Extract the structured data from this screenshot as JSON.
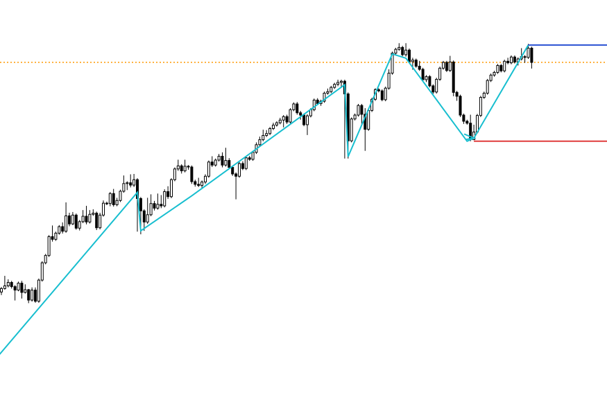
{
  "chart_data": {
    "type": "candlestick",
    "title": "",
    "xlabel": "",
    "ylabel": "",
    "xlim": [
      0,
      156
    ],
    "ylim": [
      0,
      100
    ],
    "grid": false,
    "legend": "none",
    "colors": {
      "background": "#ffffff",
      "candle": "#000000",
      "zigzag": "#17becf",
      "resistance_line": "#2f55d4",
      "support_line": "#e03c3c",
      "reference_line": "#ff9900"
    },
    "candles": [
      [
        0,
        26.6,
        27.5,
        27.9,
        25.8
      ],
      [
        1,
        27.5,
        28.2,
        30.8,
        27.2
      ],
      [
        2,
        28.2,
        29.1,
        29.9,
        27.8
      ],
      [
        3,
        29.1,
        28.0,
        29.5,
        27.5
      ],
      [
        4,
        28.0,
        27.1,
        28.4,
        24.4
      ],
      [
        5,
        27.1,
        28.9,
        29.3,
        26.8
      ],
      [
        6,
        28.9,
        26.5,
        29.5,
        24.9
      ],
      [
        7,
        26.5,
        27.2,
        28.6,
        26.2
      ],
      [
        8,
        27.2,
        24.5,
        27.4,
        23.7
      ],
      [
        9,
        24.5,
        27.1,
        27.8,
        24.1
      ],
      [
        10,
        27.1,
        24.2,
        27.8,
        23.8
      ],
      [
        11,
        24.2,
        29.7,
        30.1,
        23.8
      ],
      [
        12,
        29.7,
        34.2,
        34.6,
        29.3
      ],
      [
        13,
        34.2,
        36.1,
        36.5,
        33.8
      ],
      [
        14,
        36.1,
        41.0,
        41.4,
        35.7
      ],
      [
        15,
        41.0,
        40.3,
        43.9,
        39.7
      ],
      [
        16,
        40.3,
        41.9,
        42.3,
        39.9
      ],
      [
        17,
        41.9,
        43.6,
        44.0,
        41.5
      ],
      [
        18,
        43.6,
        42.4,
        44.7,
        41.8
      ],
      [
        19,
        42.4,
        46.4,
        49.9,
        42.0
      ],
      [
        20,
        46.4,
        44.3,
        47.2,
        43.7
      ],
      [
        21,
        44.3,
        46.6,
        47.4,
        44.0
      ],
      [
        22,
        46.6,
        43.2,
        47.0,
        42.8
      ],
      [
        23,
        43.2,
        44.9,
        45.3,
        42.6
      ],
      [
        24,
        44.9,
        46.3,
        47.9,
        44.5
      ],
      [
        25,
        46.3,
        44.8,
        49.0,
        44.2
      ],
      [
        26,
        44.8,
        46.8,
        47.9,
        44.4
      ],
      [
        27,
        46.8,
        47.1,
        48.1,
        46.4
      ],
      [
        28,
        47.1,
        43.3,
        47.5,
        42.7
      ],
      [
        29,
        43.3,
        46.6,
        47.2,
        42.9
      ],
      [
        30,
        46.6,
        49.7,
        50.4,
        46.2
      ],
      [
        31,
        49.7,
        49.6,
        50.1,
        49.2
      ],
      [
        32,
        49.6,
        52.2,
        52.6,
        48.9
      ],
      [
        33,
        52.2,
        49.3,
        53.4,
        48.8
      ],
      [
        34,
        49.3,
        50.4,
        51.1,
        48.9
      ],
      [
        35,
        50.4,
        52.8,
        53.2,
        50.0
      ],
      [
        36,
        52.8,
        54.8,
        56.9,
        52.4
      ],
      [
        37,
        54.8,
        55.0,
        55.4,
        53.1
      ],
      [
        38,
        55.0,
        54.4,
        57.2,
        53.8
      ],
      [
        39,
        54.4,
        55.8,
        57.3,
        53.9
      ],
      [
        40,
        55.8,
        50.9,
        56.2,
        42.3
      ],
      [
        41,
        50.9,
        47.7,
        51.3,
        41.6
      ],
      [
        42,
        47.7,
        44.8,
        48.1,
        42.5
      ],
      [
        43,
        44.8,
        46.7,
        51.1,
        44.3
      ],
      [
        44,
        46.7,
        49.6,
        52.0,
        46.3
      ],
      [
        45,
        49.6,
        48.4,
        50.3,
        47.8
      ],
      [
        46,
        48.4,
        49.4,
        52.2,
        48.0
      ],
      [
        47,
        49.4,
        49.0,
        51.8,
        48.4
      ],
      [
        48,
        49.0,
        52.7,
        53.3,
        48.6
      ],
      [
        49,
        52.7,
        51.4,
        54.1,
        50.8
      ],
      [
        50,
        51.4,
        55.8,
        56.2,
        51.0
      ],
      [
        51,
        55.8,
        58.6,
        59.0,
        55.4
      ],
      [
        52,
        58.6,
        59.4,
        61.0,
        58.1
      ],
      [
        53,
        59.4,
        58.1,
        59.8,
        57.4
      ],
      [
        54,
        58.1,
        59.3,
        61.0,
        57.7
      ],
      [
        55,
        59.3,
        59.1,
        59.6,
        58.4
      ],
      [
        56,
        59.1,
        55.3,
        59.5,
        54.7
      ],
      [
        57,
        55.3,
        54.6,
        55.8,
        54.0
      ],
      [
        58,
        54.6,
        54.3,
        56.3,
        53.9
      ],
      [
        59,
        54.3,
        55.2,
        55.6,
        53.7
      ],
      [
        60,
        55.2,
        56.7,
        57.2,
        54.7
      ],
      [
        61,
        56.7,
        60.4,
        60.8,
        56.3
      ],
      [
        62,
        60.4,
        59.6,
        61.9,
        59.1
      ],
      [
        63,
        59.6,
        60.9,
        61.3,
        59.2
      ],
      [
        64,
        60.9,
        61.9,
        62.5,
        60.5
      ],
      [
        65,
        61.9,
        59.6,
        62.9,
        59.0
      ],
      [
        66,
        59.6,
        60.8,
        64.1,
        59.2
      ],
      [
        67,
        60.8,
        59.0,
        61.4,
        58.6
      ],
      [
        68,
        59.0,
        57.3,
        59.4,
        56.8
      ],
      [
        69,
        57.3,
        56.7,
        57.7,
        50.7
      ],
      [
        70,
        56.7,
        60.0,
        60.4,
        56.3
      ],
      [
        71,
        60.0,
        58.7,
        60.6,
        58.3
      ],
      [
        72,
        58.7,
        61.5,
        61.9,
        58.3
      ],
      [
        73,
        61.5,
        61.1,
        62.0,
        60.7
      ],
      [
        74,
        61.1,
        62.9,
        63.3,
        60.7
      ],
      [
        75,
        62.9,
        64.9,
        65.5,
        62.5
      ],
      [
        76,
        64.9,
        66.2,
        67.0,
        64.5
      ],
      [
        77,
        66.2,
        67.3,
        68.8,
        65.8
      ],
      [
        78,
        67.3,
        67.8,
        68.7,
        66.9
      ],
      [
        79,
        67.8,
        69.1,
        69.5,
        67.4
      ],
      [
        80,
        69.1,
        70.0,
        70.6,
        68.7
      ],
      [
        81,
        70.0,
        70.6,
        71.0,
        69.6
      ],
      [
        82,
        70.6,
        71.3,
        71.9,
        70.2
      ],
      [
        83,
        71.3,
        72.2,
        72.6,
        69.4
      ],
      [
        84,
        72.2,
        70.8,
        72.7,
        70.3
      ],
      [
        85,
        70.8,
        74.0,
        74.4,
        70.4
      ],
      [
        86,
        74.0,
        75.5,
        75.9,
        73.6
      ],
      [
        87,
        75.5,
        73.2,
        76.0,
        72.7
      ],
      [
        88,
        73.2,
        72.6,
        73.7,
        71.4
      ],
      [
        89,
        72.6,
        70.1,
        73.0,
        69.7
      ],
      [
        90,
        70.1,
        72.4,
        72.8,
        67.4
      ],
      [
        91,
        72.4,
        74.0,
        74.4,
        72.0
      ],
      [
        92,
        74.0,
        76.5,
        76.9,
        73.6
      ],
      [
        93,
        76.5,
        75.6,
        77.0,
        75.2
      ],
      [
        94,
        75.6,
        76.2,
        76.6,
        75.0
      ],
      [
        95,
        76.2,
        78.3,
        78.7,
        75.8
      ],
      [
        96,
        78.3,
        78.7,
        79.5,
        77.9
      ],
      [
        97,
        78.7,
        79.8,
        80.2,
        78.3
      ],
      [
        98,
        79.8,
        80.6,
        81.0,
        79.4
      ],
      [
        99,
        80.6,
        81.1,
        81.8,
        80.1
      ],
      [
        100,
        81.1,
        81.4,
        81.8,
        80.0
      ],
      [
        101,
        81.4,
        78.1,
        81.8,
        61.3
      ],
      [
        102,
        78.1,
        65.9,
        78.5,
        61.3
      ],
      [
        103,
        65.9,
        71.6,
        72.0,
        65.5
      ],
      [
        104,
        71.6,
        72.6,
        73.0,
        71.2
      ],
      [
        105,
        72.6,
        75.1,
        75.5,
        72.2
      ],
      [
        106,
        75.1,
        72.8,
        75.5,
        70.1
      ],
      [
        107,
        72.8,
        68.9,
        74.4,
        63.3
      ],
      [
        108,
        68.9,
        73.8,
        74.2,
        68.5
      ],
      [
        109,
        73.8,
        76.7,
        77.1,
        73.4
      ],
      [
        110,
        76.7,
        79.2,
        79.6,
        76.3
      ],
      [
        111,
        79.2,
        78.9,
        79.6,
        78.5
      ],
      [
        112,
        78.9,
        76.6,
        79.3,
        76.2
      ],
      [
        113,
        76.6,
        79.6,
        80.0,
        76.2
      ],
      [
        114,
        79.6,
        83.5,
        84.5,
        79.2
      ],
      [
        115,
        83.5,
        88.7,
        89.1,
        83.1
      ],
      [
        116,
        88.7,
        89.7,
        90.1,
        88.3
      ],
      [
        117,
        89.7,
        90.2,
        91.3,
        89.3
      ],
      [
        118,
        90.2,
        88.3,
        90.6,
        87.9
      ],
      [
        119,
        88.3,
        89.5,
        91.3,
        87.8
      ],
      [
        120,
        89.5,
        86.5,
        89.9,
        86.1
      ],
      [
        121,
        86.5,
        86.9,
        87.5,
        84.4
      ],
      [
        122,
        86.9,
        85.3,
        87.3,
        84.9
      ],
      [
        123,
        85.3,
        84.5,
        86.7,
        84.1
      ],
      [
        124,
        84.5,
        81.8,
        84.9,
        81.4
      ],
      [
        125,
        81.8,
        82.6,
        83.0,
        81.2
      ],
      [
        126,
        82.6,
        80.2,
        83.0,
        79.8
      ],
      [
        127,
        80.2,
        78.6,
        80.6,
        78.1
      ],
      [
        128,
        78.6,
        81.9,
        82.3,
        78.2
      ],
      [
        129,
        81.9,
        84.8,
        85.2,
        81.5
      ],
      [
        130,
        84.8,
        86.3,
        86.7,
        84.4
      ],
      [
        131,
        86.3,
        84.2,
        86.7,
        83.8
      ],
      [
        132,
        84.2,
        86.4,
        88.0,
        83.8
      ],
      [
        133,
        86.4,
        78.5,
        86.8,
        77.5
      ],
      [
        134,
        78.5,
        77.5,
        78.9,
        76.3
      ],
      [
        135,
        77.5,
        72.6,
        77.9,
        72.1
      ],
      [
        136,
        72.6,
        71.0,
        73.0,
        70.3
      ],
      [
        137,
        71.0,
        70.5,
        71.4,
        70.1
      ],
      [
        138,
        70.5,
        66.2,
        72.7,
        65.8
      ],
      [
        139,
        66.2,
        68.2,
        70.1,
        67.6
      ],
      [
        140,
        68.2,
        72.5,
        72.9,
        67.8
      ],
      [
        141,
        72.5,
        77.2,
        77.6,
        72.1
      ],
      [
        142,
        77.2,
        78.3,
        78.7,
        76.8
      ],
      [
        143,
        78.3,
        81.6,
        82.0,
        77.9
      ],
      [
        144,
        81.6,
        83.0,
        83.4,
        81.2
      ],
      [
        145,
        83.0,
        83.7,
        84.1,
        82.6
      ],
      [
        146,
        83.7,
        85.5,
        85.9,
        83.3
      ],
      [
        147,
        85.5,
        84.1,
        85.9,
        83.7
      ],
      [
        148,
        84.1,
        86.6,
        87.0,
        83.7
      ],
      [
        149,
        86.6,
        86.2,
        87.5,
        85.8
      ],
      [
        150,
        86.2,
        87.7,
        88.1,
        85.8
      ],
      [
        151,
        87.7,
        86.4,
        88.1,
        86.0
      ],
      [
        152,
        86.4,
        87.2,
        87.6,
        85.5
      ],
      [
        153,
        87.2,
        87.8,
        90.0,
        86.8
      ],
      [
        154,
        87.8,
        87.6,
        88.2,
        86.2
      ],
      [
        155,
        87.6,
        90.0,
        91.1,
        87.2
      ],
      [
        156,
        90.0,
        86.3,
        90.4,
        84.7
      ]
    ],
    "zigzag": [
      {
        "x": -1,
        "y": 9.9
      },
      {
        "x": 40,
        "y": 52.5
      },
      {
        "x": 41,
        "y": 42.5
      },
      {
        "x": 56,
        "y": 51.6
      },
      {
        "x": 101,
        "y": 80.5
      },
      {
        "x": 102,
        "y": 61.8
      },
      {
        "x": 115,
        "y": 88.5
      },
      {
        "x": 119,
        "y": 87.4
      },
      {
        "x": 137,
        "y": 65.8
      },
      {
        "x": 139,
        "y": 66.6
      },
      {
        "x": 155,
        "y": 90.8
      }
    ],
    "zigzag_arrow": {
      "x": 139,
      "y": 66.6
    },
    "resistance": {
      "value": 90.8,
      "from": 155,
      "to": 157
    },
    "support": {
      "value": 65.8,
      "from": 139,
      "to": 157
    },
    "reference_level": {
      "value": 86.3
    }
  }
}
